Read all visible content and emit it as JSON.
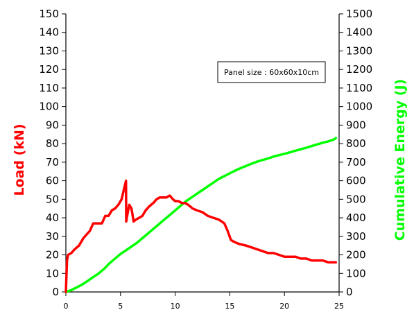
{
  "chart_data": {
    "type": "line",
    "title": "",
    "xlabel": "",
    "y_left_label": "Load (kN)",
    "y_right_label": "Cumulative Energy (J)",
    "annotation": "Panel size : 60x60x10cm",
    "xlim": [
      0,
      25
    ],
    "y_left_lim": [
      0,
      150
    ],
    "y_right_lim": [
      0,
      1500
    ],
    "x_ticks": [
      "0",
      "5",
      "10",
      "15",
      "20",
      "25"
    ],
    "y_left_ticks": [
      "0",
      "10",
      "20",
      "30",
      "40",
      "50",
      "60",
      "70",
      "80",
      "90",
      "100",
      "110",
      "120",
      "130",
      "140",
      "150"
    ],
    "y_right_ticks": [
      "0",
      "100",
      "200",
      "300",
      "400",
      "500",
      "600",
      "700",
      "800",
      "900",
      "1000",
      "1100",
      "1200",
      "1300",
      "1400",
      "1500"
    ],
    "grid": false,
    "colors": {
      "load": "#ff0000",
      "energy": "#00ff00",
      "axis": "#000000"
    },
    "series": [
      {
        "name": "Load (kN)",
        "axis": "left",
        "color": "#ff0000",
        "x": [
          0,
          0.1,
          0.2,
          0.5,
          0.8,
          1.2,
          1.6,
          1.9,
          2.2,
          2.5,
          2.8,
          3.1,
          3.3,
          3.6,
          3.9,
          4.2,
          4.5,
          4.8,
          5.1,
          5.3,
          5.5,
          5.52,
          5.6,
          5.8,
          6.0,
          6.2,
          6.4,
          6.7,
          7.0,
          7.3,
          7.6,
          7.8,
          8.0,
          8.3,
          8.6,
          8.9,
          9.2,
          9.5,
          9.8,
          10.0,
          10.3,
          10.6,
          10.9,
          11.2,
          11.6,
          12.0,
          12.5,
          13.0,
          13.5,
          14.0,
          14.5,
          14.8,
          15.1,
          15.4,
          15.8,
          16.5,
          17.0,
          17.5,
          18.0,
          18.5,
          19.0,
          19.5,
          20.0,
          20.5,
          21.0,
          21.5,
          22.0,
          22.5,
          23.0,
          23.5,
          24.0,
          24.5,
          24.7
        ],
        "y": [
          0,
          17,
          20,
          21,
          23,
          25,
          29,
          31,
          33,
          37,
          37,
          37,
          37,
          41,
          41,
          44,
          45,
          47,
          50,
          55,
          60,
          38,
          41,
          47,
          45,
          38,
          39,
          40,
          41,
          44,
          46,
          47,
          48,
          50,
          51,
          51,
          51,
          52,
          50,
          49,
          49,
          48,
          48,
          47,
          45,
          44,
          43,
          41,
          40,
          39,
          37,
          33,
          28,
          27,
          26,
          25,
          24,
          23,
          22,
          21,
          21,
          20,
          19,
          19,
          19,
          18,
          18,
          17,
          17,
          17,
          16,
          16,
          16
        ]
      },
      {
        "name": "Cumulative Energy (J)",
        "axis": "right",
        "color": "#00ff00",
        "x": [
          0,
          0.5,
          1,
          1.5,
          2,
          2.5,
          3,
          3.5,
          4,
          4.5,
          5,
          5.5,
          6,
          6.5,
          7,
          7.5,
          8,
          8.5,
          9,
          9.5,
          10,
          10.5,
          11,
          11.5,
          12,
          12.5,
          13,
          13.5,
          14,
          14.5,
          15,
          15.5,
          16,
          16.5,
          17,
          17.5,
          18,
          18.5,
          19,
          19.5,
          20,
          20.5,
          21,
          21.5,
          22,
          22.5,
          23,
          23.5,
          24,
          24.5,
          24.7
        ],
        "y": [
          0,
          10,
          25,
          40,
          60,
          80,
          100,
          125,
          155,
          180,
          205,
          225,
          245,
          265,
          290,
          315,
          340,
          365,
          390,
          415,
          440,
          465,
          490,
          510,
          530,
          550,
          570,
          590,
          610,
          625,
          640,
          655,
          668,
          680,
          692,
          703,
          712,
          720,
          730,
          738,
          745,
          753,
          762,
          770,
          778,
          787,
          796,
          805,
          812,
          822,
          830
        ]
      }
    ]
  }
}
